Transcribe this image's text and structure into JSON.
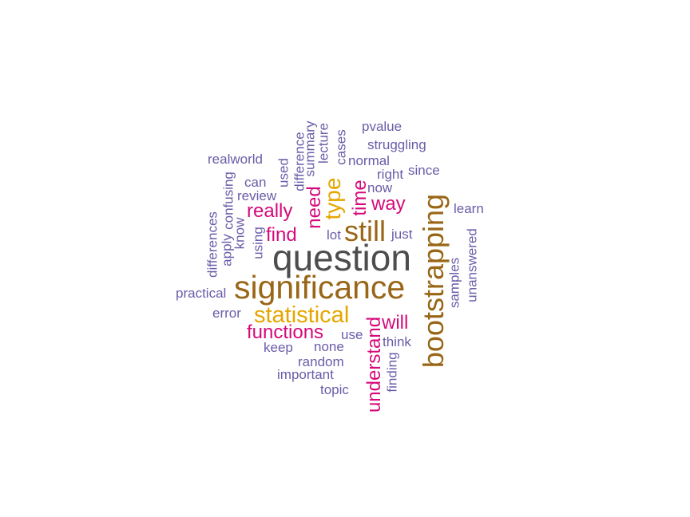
{
  "colors": {
    "grey": "#4d4d4d",
    "brown": "#996617",
    "gold": "#e6a600",
    "pink": "#d6097a",
    "purple": "#6b5ca8"
  },
  "words": {
    "question": "question",
    "significance": "significance",
    "bootstrapping": "bootstrapping",
    "statistical": "statistical",
    "still": "still",
    "type": "type",
    "understand": "understand",
    "functions": "functions",
    "really": "really",
    "need": "need",
    "way": "way",
    "time": "time",
    "find": "find",
    "will": "will",
    "pvalue": "pvalue",
    "struggling": "struggling",
    "normal": "normal",
    "right": "right",
    "since": "since",
    "now": "now",
    "learn": "learn",
    "just": "just",
    "lot": "lot",
    "realworld": "realworld",
    "can": "can",
    "review": "review",
    "used": "used",
    "difference": "difference",
    "summary": "summary",
    "lecture": "lecture",
    "cases": "cases",
    "confusing": "confusing",
    "apply": "apply",
    "know": "know",
    "using": "using",
    "differences": "differences",
    "practical": "practical",
    "error": "error",
    "keep": "keep",
    "none": "none",
    "use": "use",
    "think": "think",
    "random": "random",
    "important": "important",
    "topic": "topic",
    "finding": "finding",
    "samples": "samples",
    "unanswered": "unanswered"
  }
}
